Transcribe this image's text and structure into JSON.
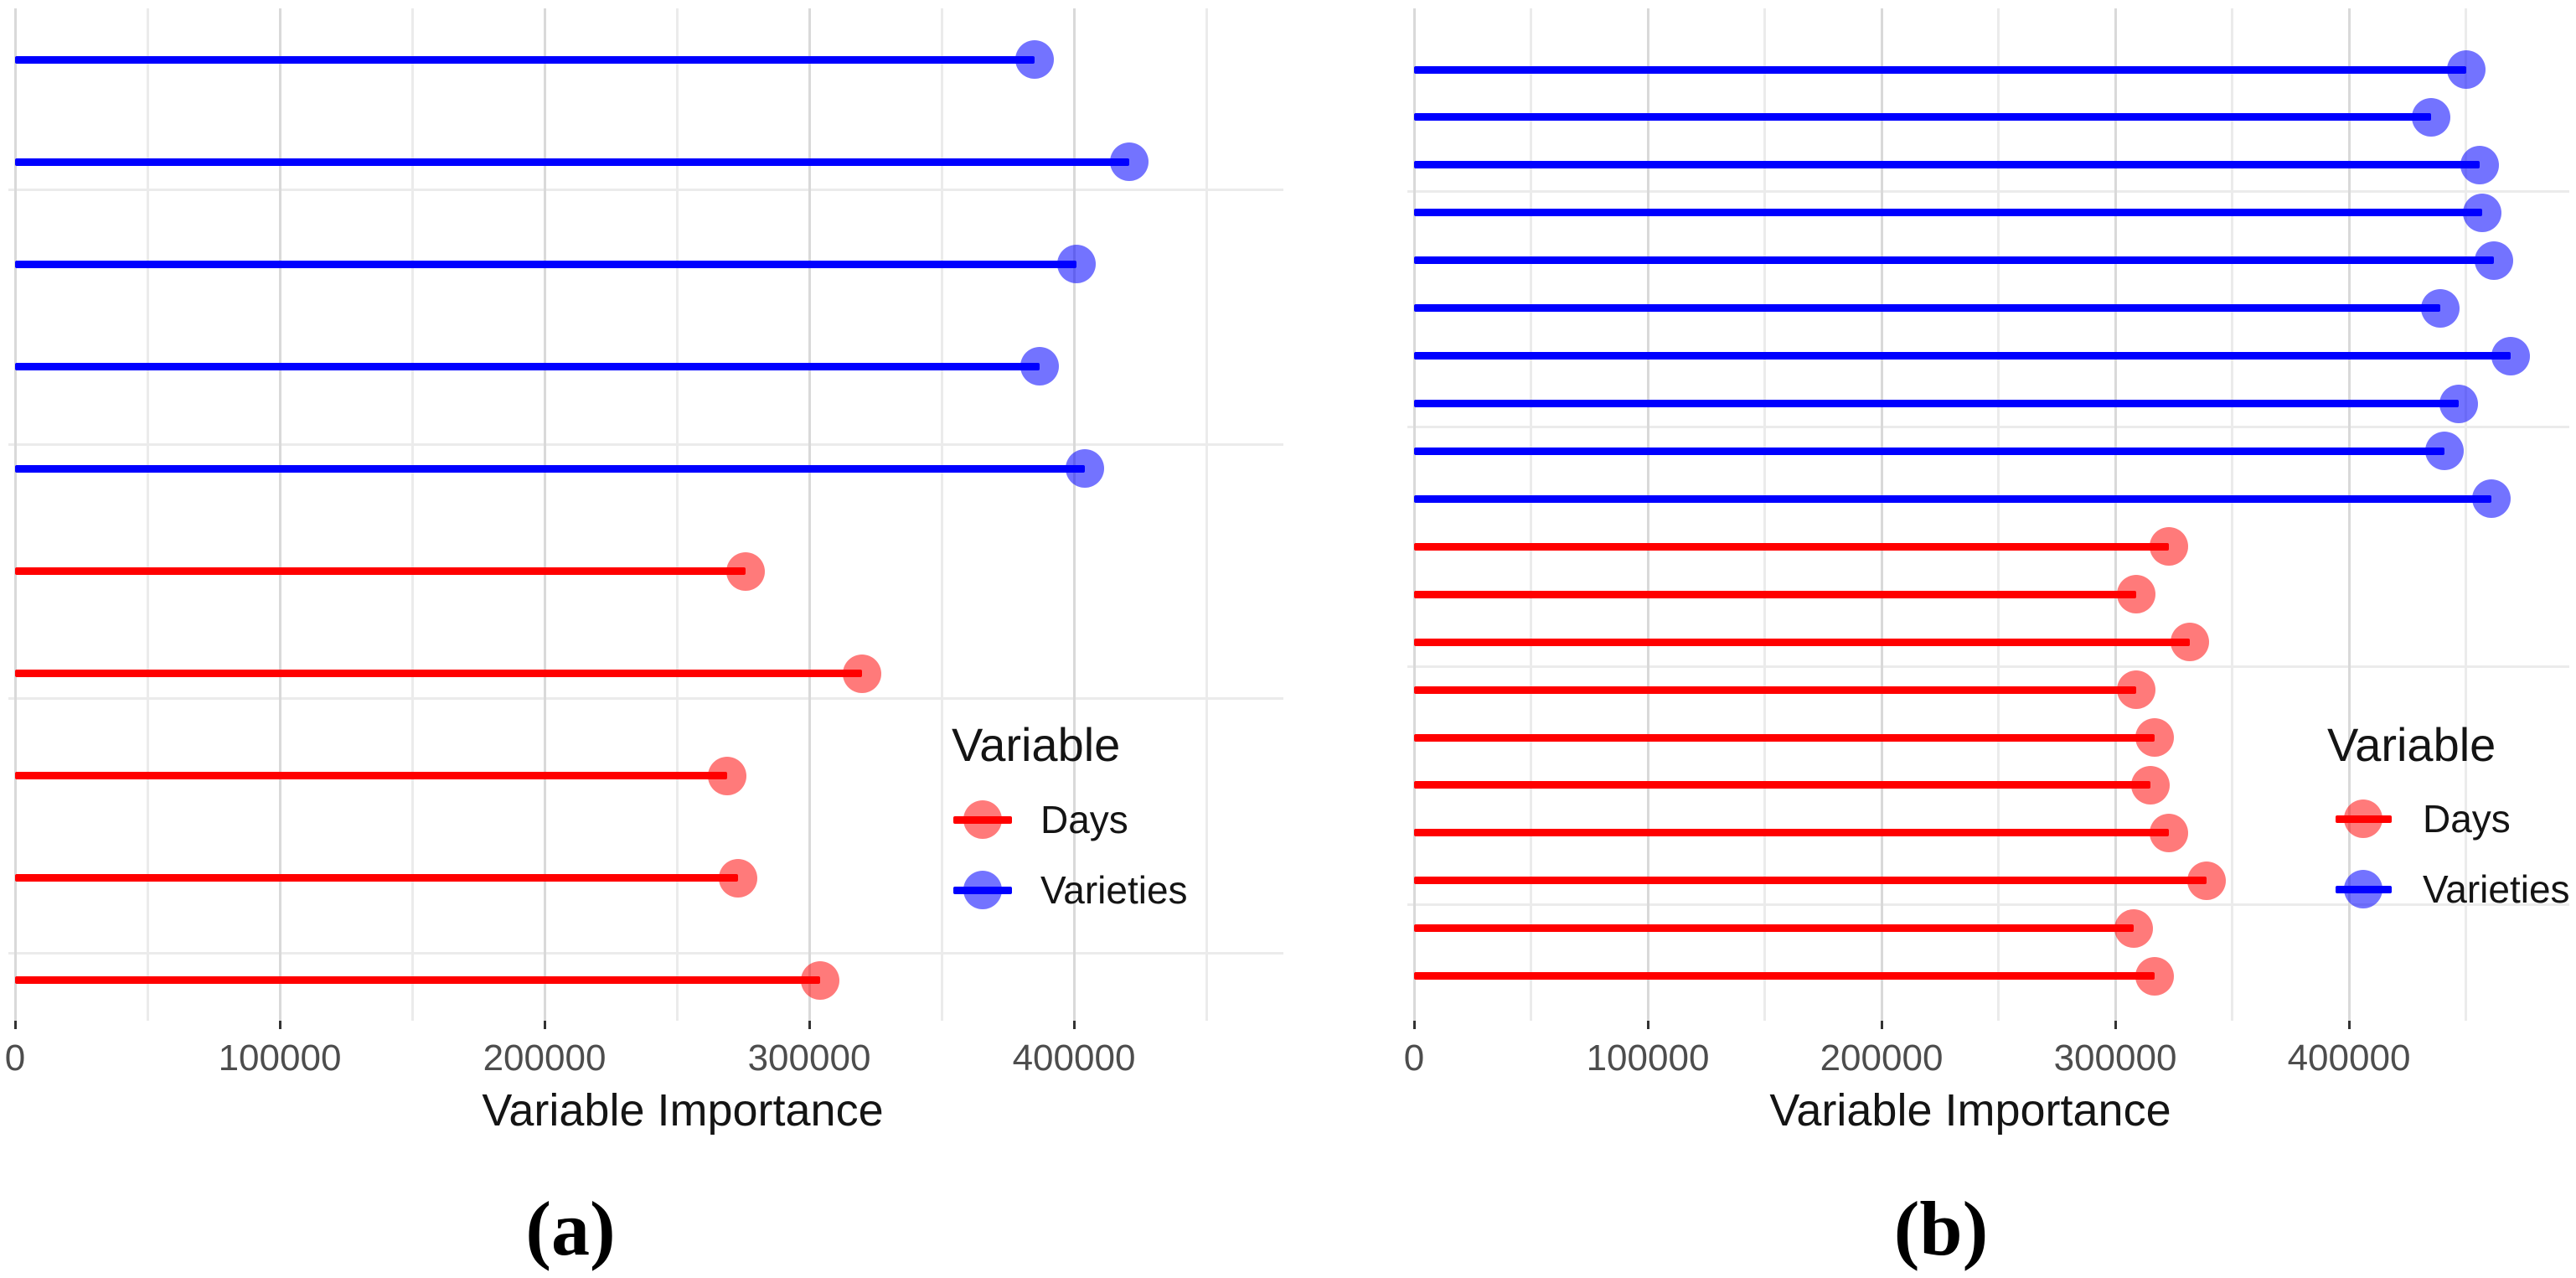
{
  "figure": {
    "background": "#ffffff",
    "captions": [
      "(a)",
      "(b)"
    ]
  },
  "colors": {
    "days_stem": "#FF0000",
    "varieties_stem": "#0000FF",
    "days_dot": "rgba(255,0,0,0.52)",
    "varieties_dot": "rgba(0,0,255,0.55)",
    "grid_major": "#d9d9d9",
    "grid_minor": "#ebebeb",
    "tick_text": "#4d4d4d",
    "text": "#141414"
  },
  "chart_data": [
    {
      "type": "bar",
      "style": "horizontal-lollipop",
      "panel_label": "(a)",
      "title": "",
      "xlabel": "Variable Importance",
      "ylabel": "",
      "xlim": [
        0,
        480000
      ],
      "x_ticks": [
        0,
        100000,
        200000,
        300000,
        400000
      ],
      "x_tick_labels": [
        "0",
        "100000",
        "200000",
        "300000",
        "400000"
      ],
      "grid": true,
      "legend_position": "inside-right-middle",
      "legend": {
        "title": "Variable",
        "entries": [
          {
            "label": "Days",
            "color": "#FF0000"
          },
          {
            "label": "Varieties",
            "color": "#0000FF"
          }
        ]
      },
      "points": [
        {
          "variable": "Varieties",
          "value": 385000
        },
        {
          "variable": "Varieties",
          "value": 421000
        },
        {
          "variable": "Varieties",
          "value": 401000
        },
        {
          "variable": "Varieties",
          "value": 387000
        },
        {
          "variable": "Varieties",
          "value": 404000
        },
        {
          "variable": "Days",
          "value": 276000
        },
        {
          "variable": "Days",
          "value": 320000
        },
        {
          "variable": "Days",
          "value": 269000
        },
        {
          "variable": "Days",
          "value": 273000
        },
        {
          "variable": "Days",
          "value": 304000
        }
      ]
    },
    {
      "type": "bar",
      "style": "horizontal-lollipop",
      "panel_label": "(b)",
      "title": "",
      "xlabel": "Variable Importance",
      "ylabel": "",
      "xlim": [
        0,
        495000
      ],
      "x_ticks": [
        0,
        100000,
        200000,
        300000,
        400000
      ],
      "x_tick_labels": [
        "0",
        "100000",
        "200000",
        "300000",
        "400000"
      ],
      "grid": true,
      "legend_position": "inside-right-middle",
      "legend": {
        "title": "Variable",
        "entries": [
          {
            "label": "Days",
            "color": "#FF0000"
          },
          {
            "label": "Varieties",
            "color": "#0000FF"
          }
        ]
      },
      "points": [
        {
          "variable": "Varieties",
          "value": 450000
        },
        {
          "variable": "Varieties",
          "value": 435000
        },
        {
          "variable": "Varieties",
          "value": 456000
        },
        {
          "variable": "Varieties",
          "value": 457000
        },
        {
          "variable": "Varieties",
          "value": 462000
        },
        {
          "variable": "Varieties",
          "value": 439000
        },
        {
          "variable": "Varieties",
          "value": 469000
        },
        {
          "variable": "Varieties",
          "value": 447000
        },
        {
          "variable": "Varieties",
          "value": 441000
        },
        {
          "variable": "Varieties",
          "value": 461000
        },
        {
          "variable": "Days",
          "value": 323000
        },
        {
          "variable": "Days",
          "value": 309000
        },
        {
          "variable": "Days",
          "value": 332000
        },
        {
          "variable": "Days",
          "value": 309000
        },
        {
          "variable": "Days",
          "value": 317000
        },
        {
          "variable": "Days",
          "value": 315000
        },
        {
          "variable": "Days",
          "value": 323000
        },
        {
          "variable": "Days",
          "value": 339000
        },
        {
          "variable": "Days",
          "value": 308000
        },
        {
          "variable": "Days",
          "value": 317000
        }
      ]
    }
  ]
}
